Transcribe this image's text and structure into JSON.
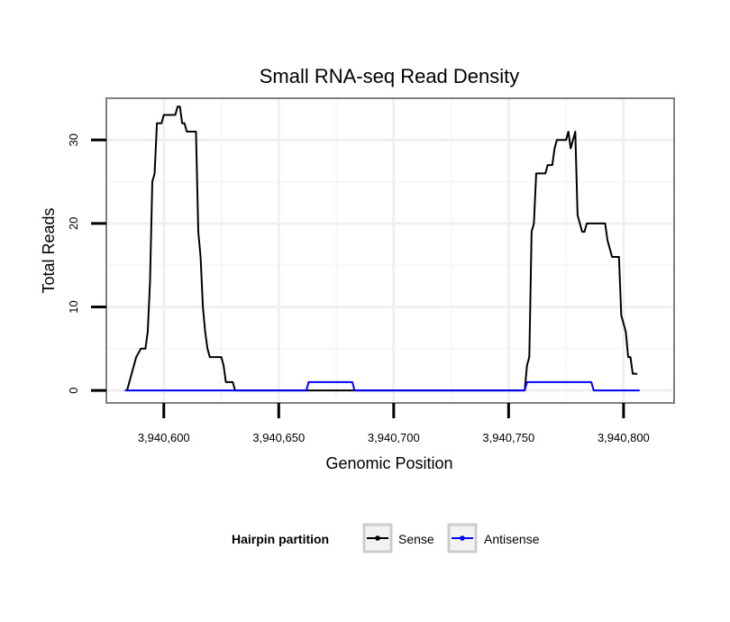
{
  "chart_data": {
    "type": "line",
    "title": "Small RNA-seq Read Density",
    "xlabel": "Genomic Position",
    "ylabel": "Total Reads",
    "xlim": [
      3940575,
      3940822
    ],
    "ylim": [
      -1.5,
      35
    ],
    "x_ticks": [
      {
        "value": 3940600,
        "label": "3,940,600"
      },
      {
        "value": 3940650,
        "label": "3,940,650"
      },
      {
        "value": 3940700,
        "label": "3,940,700"
      },
      {
        "value": 3940750,
        "label": "3,940,750"
      },
      {
        "value": 3940800,
        "label": "3,940,800"
      }
    ],
    "y_ticks": [
      {
        "value": 0,
        "label": "0"
      },
      {
        "value": 10,
        "label": "10"
      },
      {
        "value": 20,
        "label": "20"
      },
      {
        "value": 30,
        "label": "30"
      }
    ],
    "grid": true,
    "legend": {
      "title": "Hairpin partition",
      "position": "bottom"
    },
    "series": [
      {
        "name": "Sense",
        "color": "#000000",
        "points": [
          [
            3940584,
            0
          ],
          [
            3940586,
            2
          ],
          [
            3940588,
            4
          ],
          [
            3940590,
            5
          ],
          [
            3940592,
            5
          ],
          [
            3940593,
            7
          ],
          [
            3940594,
            13
          ],
          [
            3940595,
            25
          ],
          [
            3940596,
            26
          ],
          [
            3940597,
            32
          ],
          [
            3940599,
            32
          ],
          [
            3940600,
            33
          ],
          [
            3940602,
            33
          ],
          [
            3940604,
            33
          ],
          [
            3940605,
            33
          ],
          [
            3940606,
            34
          ],
          [
            3940607,
            34
          ],
          [
            3940608,
            32
          ],
          [
            3940609,
            32
          ],
          [
            3940610,
            31
          ],
          [
            3940612,
            31
          ],
          [
            3940614,
            31
          ],
          [
            3940615,
            19
          ],
          [
            3940616,
            16
          ],
          [
            3940617,
            10
          ],
          [
            3940618,
            7
          ],
          [
            3940619,
            5
          ],
          [
            3940620,
            4
          ],
          [
            3940622,
            4
          ],
          [
            3940625,
            4
          ],
          [
            3940626,
            3
          ],
          [
            3940627,
            1
          ],
          [
            3940630,
            1
          ],
          [
            3940631,
            0
          ],
          [
            3940650,
            0
          ],
          [
            3940700,
            0
          ],
          [
            3940750,
            0
          ],
          [
            3940757,
            0
          ],
          [
            3940758,
            3
          ],
          [
            3940759,
            4
          ],
          [
            3940760,
            19
          ],
          [
            3940761,
            20
          ],
          [
            3940762,
            26
          ],
          [
            3940766,
            26
          ],
          [
            3940767,
            27
          ],
          [
            3940769,
            27
          ],
          [
            3940770,
            29
          ],
          [
            3940771,
            30
          ],
          [
            3940775,
            30
          ],
          [
            3940776,
            31
          ],
          [
            3940777,
            29
          ],
          [
            3940778,
            30
          ],
          [
            3940779,
            31
          ],
          [
            3940780,
            21
          ],
          [
            3940782,
            19
          ],
          [
            3940783,
            19
          ],
          [
            3940784,
            20
          ],
          [
            3940792,
            20
          ],
          [
            3940793,
            18
          ],
          [
            3940795,
            16
          ],
          [
            3940798,
            16
          ],
          [
            3940799,
            9
          ],
          [
            3940801,
            7
          ],
          [
            3940802,
            4
          ],
          [
            3940803,
            4
          ],
          [
            3940804,
            2
          ],
          [
            3940806,
            2
          ]
        ]
      },
      {
        "name": "Antisense",
        "color": "#0000ff",
        "points": [
          [
            3940583,
            0
          ],
          [
            3940662,
            0
          ],
          [
            3940663,
            1
          ],
          [
            3940682,
            1
          ],
          [
            3940683,
            0
          ],
          [
            3940757,
            0
          ],
          [
            3940758,
            1
          ],
          [
            3940786,
            1
          ],
          [
            3940787,
            0
          ],
          [
            3940807,
            0
          ]
        ]
      }
    ]
  }
}
